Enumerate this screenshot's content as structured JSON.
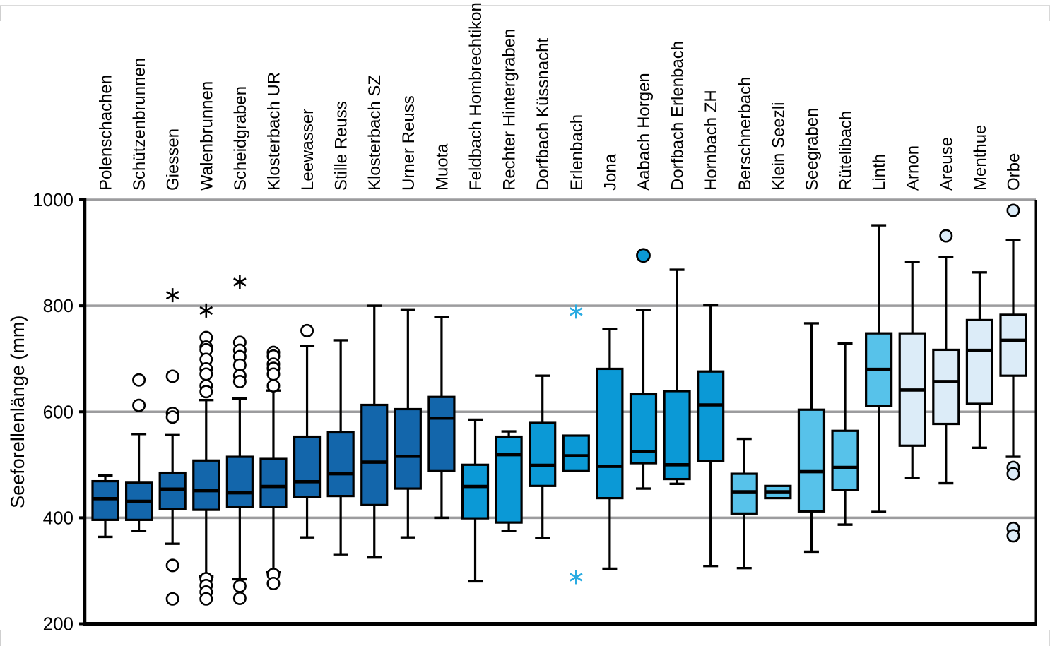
{
  "chart_data": {
    "type": "boxplot",
    "title": "",
    "ylabel": "Seeforellenlänge (mm)",
    "ylim": [
      200,
      1000
    ],
    "yticks": [
      200,
      400,
      600,
      800,
      1000
    ],
    "grid": "horizontal-gray",
    "legend": "none",
    "colors": {
      "dark": "#1366ab",
      "medium": "#0b99d6",
      "sky": "#57c2ea",
      "pale": "#dcecf8",
      "star_accent": "#29abe2",
      "grid_line": "#9c9c9e",
      "axis": "#000000",
      "page_border": "#cfcfcf"
    },
    "series": [
      {
        "label": "Polenschachen",
        "group": "dark",
        "low": 364,
        "q1": 396,
        "median": 436,
        "q3": 469,
        "high": 480,
        "outliers": [],
        "outliers_filled": [],
        "stars": [],
        "stars_accent": []
      },
      {
        "label": "Schützenbrunnen",
        "group": "dark",
        "low": 375,
        "q1": 396,
        "median": 431,
        "q3": 466,
        "high": 558,
        "outliers": [
          660,
          612
        ],
        "outliers_filled": [],
        "stars": [],
        "stars_accent": []
      },
      {
        "label": "Giessen",
        "group": "dark",
        "low": 351,
        "q1": 416,
        "median": 454,
        "q3": 485,
        "high": 556,
        "outliers": [
          667,
          597,
          590,
          310,
          247
        ],
        "outliers_filled": [],
        "stars": [
          820
        ],
        "stars_accent": []
      },
      {
        "label": "Walenbrunnen",
        "group": "dark",
        "low": 289,
        "q1": 415,
        "median": 451,
        "q3": 508,
        "high": 622,
        "outliers": [
          740,
          722,
          717,
          699,
          681,
          671,
          649,
          638,
          285,
          272,
          260,
          247
        ],
        "outliers_filled": [],
        "stars": [
          791
        ],
        "stars_accent": []
      },
      {
        "label": "Scheidgraben",
        "group": "dark",
        "low": 284,
        "q1": 420,
        "median": 447,
        "q3": 515,
        "high": 625,
        "outliers": [
          731,
          716,
          704,
          688,
          668,
          657,
          271,
          248
        ],
        "outliers_filled": [],
        "stars": [
          845
        ],
        "stars_accent": []
      },
      {
        "label": "Klosterbach UR",
        "group": "dark",
        "low": 297,
        "q1": 420,
        "median": 459,
        "q3": 511,
        "high": 640,
        "outliers": [
          712,
          705,
          690,
          682,
          671,
          649,
          293,
          276
        ],
        "outliers_filled": [],
        "stars": [],
        "stars_accent": []
      },
      {
        "label": "Leewasser",
        "group": "dark",
        "low": 363,
        "q1": 439,
        "median": 468,
        "q3": 553,
        "high": 724,
        "outliers": [
          753
        ],
        "outliers_filled": [],
        "stars": [],
        "stars_accent": []
      },
      {
        "label": "Stille Reuss",
        "group": "dark",
        "low": 331,
        "q1": 441,
        "median": 483,
        "q3": 561,
        "high": 735,
        "outliers": [],
        "outliers_filled": [],
        "stars": [],
        "stars_accent": []
      },
      {
        "label": "Klosterbach SZ",
        "group": "dark",
        "low": 325,
        "q1": 424,
        "median": 505,
        "q3": 613,
        "high": 800,
        "outliers": [],
        "outliers_filled": [],
        "stars": [],
        "stars_accent": []
      },
      {
        "label": "Urner Reuss",
        "group": "dark",
        "low": 363,
        "q1": 455,
        "median": 516,
        "q3": 605,
        "high": 793,
        "outliers": [],
        "outliers_filled": [],
        "stars": [],
        "stars_accent": []
      },
      {
        "label": "Muota",
        "group": "dark",
        "low": 400,
        "q1": 488,
        "median": 588,
        "q3": 628,
        "high": 779,
        "outliers": [],
        "outliers_filled": [],
        "stars": [],
        "stars_accent": []
      },
      {
        "label": "Feldbach Hombrechtikon",
        "group": "medium",
        "low": 280,
        "q1": 399,
        "median": 459,
        "q3": 500,
        "high": 585,
        "outliers": [],
        "outliers_filled": [],
        "stars": [],
        "stars_accent": []
      },
      {
        "label": "Rechter Hintergraben",
        "group": "medium",
        "low": 375,
        "q1": 391,
        "median": 519,
        "q3": 553,
        "high": 563,
        "outliers": [],
        "outliers_filled": [],
        "stars": [],
        "stars_accent": []
      },
      {
        "label": "Dorfbach Küssnacht",
        "group": "medium",
        "low": 362,
        "q1": 460,
        "median": 499,
        "q3": 579,
        "high": 668,
        "outliers": [],
        "outliers_filled": [],
        "stars": [],
        "stars_accent": []
      },
      {
        "label": "Erlenbach",
        "group": "medium",
        "low": 488,
        "q1": 488,
        "median": 517,
        "q3": 555,
        "high": 555,
        "outliers": [],
        "outliers_filled": [],
        "stars": [],
        "stars_accent": [
          789,
          288
        ]
      },
      {
        "label": "Jona",
        "group": "medium",
        "low": 304,
        "q1": 437,
        "median": 497,
        "q3": 681,
        "high": 756,
        "outliers": [],
        "outliers_filled": [],
        "stars": [],
        "stars_accent": []
      },
      {
        "label": "Aabach Horgen",
        "group": "medium",
        "low": 455,
        "q1": 503,
        "median": 525,
        "q3": 633,
        "high": 792,
        "outliers": [],
        "outliers_filled": [
          895
        ],
        "stars": [],
        "stars_accent": []
      },
      {
        "label": "Dorfbach Erlenbach",
        "group": "medium",
        "low": 464,
        "q1": 473,
        "median": 500,
        "q3": 639,
        "high": 868,
        "outliers": [],
        "outliers_filled": [],
        "stars": [],
        "stars_accent": []
      },
      {
        "label": "Hornbach ZH",
        "group": "medium",
        "low": 309,
        "q1": 507,
        "median": 613,
        "q3": 676,
        "high": 801,
        "outliers": [],
        "outliers_filled": [],
        "stars": [],
        "stars_accent": []
      },
      {
        "label": "Berschnerbach",
        "group": "sky",
        "low": 305,
        "q1": 408,
        "median": 449,
        "q3": 483,
        "high": 549,
        "outliers": [],
        "outliers_filled": [],
        "stars": [],
        "stars_accent": []
      },
      {
        "label": "Klein Seezli",
        "group": "sky",
        "low": 437,
        "q1": 437,
        "median": 449,
        "q3": 460,
        "high": 460,
        "outliers": [],
        "outliers_filled": [],
        "stars": [],
        "stars_accent": []
      },
      {
        "label": "Seegraben",
        "group": "sky",
        "low": 336,
        "q1": 412,
        "median": 487,
        "q3": 604,
        "high": 767,
        "outliers": [],
        "outliers_filled": [],
        "stars": [],
        "stars_accent": []
      },
      {
        "label": "Rütelibach",
        "group": "sky",
        "low": 387,
        "q1": 453,
        "median": 495,
        "q3": 564,
        "high": 729,
        "outliers": [],
        "outliers_filled": [],
        "stars": [],
        "stars_accent": []
      },
      {
        "label": "Linth",
        "group": "sky",
        "low": 411,
        "q1": 611,
        "median": 680,
        "q3": 748,
        "high": 952,
        "outliers": [],
        "outliers_filled": [],
        "stars": [],
        "stars_accent": []
      },
      {
        "label": "Arnon",
        "group": "pale",
        "low": 475,
        "q1": 536,
        "median": 641,
        "q3": 748,
        "high": 883,
        "outliers": [],
        "outliers_filled": [],
        "stars": [],
        "stars_accent": []
      },
      {
        "label": "Areuse",
        "group": "pale",
        "low": 465,
        "q1": 577,
        "median": 657,
        "q3": 717,
        "high": 892,
        "outliers": [
          932
        ],
        "outliers_filled": [],
        "stars": [],
        "stars_accent": []
      },
      {
        "label": "Menthue",
        "group": "pale",
        "low": 532,
        "q1": 615,
        "median": 716,
        "q3": 773,
        "high": 863,
        "outliers": [],
        "outliers_filled": [],
        "stars": [],
        "stars_accent": []
      },
      {
        "label": "Orbe",
        "group": "pale",
        "low": 515,
        "q1": 668,
        "median": 735,
        "q3": 783,
        "high": 924,
        "outliers": [
          980,
          495,
          483,
          380,
          366
        ],
        "outliers_filled": [],
        "stars": [],
        "stars_accent": []
      }
    ]
  }
}
